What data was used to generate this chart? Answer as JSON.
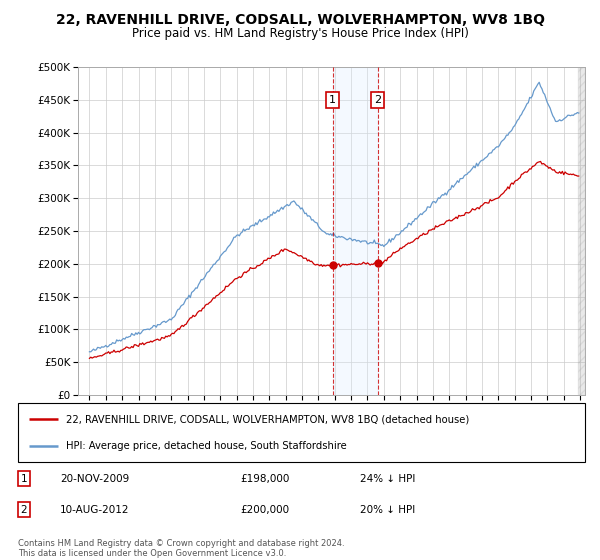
{
  "title": "22, RAVENHILL DRIVE, CODSALL, WOLVERHAMPTON, WV8 1BQ",
  "subtitle": "Price paid vs. HM Land Registry's House Price Index (HPI)",
  "legend_line1": "22, RAVENHILL DRIVE, CODSALL, WOLVERHAMPTON, WV8 1BQ (detached house)",
  "legend_line2": "HPI: Average price, detached house, South Staffordshire",
  "transaction1_date": "20-NOV-2009",
  "transaction1_price": 198000,
  "transaction1_label": "24% ↓ HPI",
  "transaction2_date": "10-AUG-2012",
  "transaction2_price": 200000,
  "transaction2_label": "20% ↓ HPI",
  "footer": "Contains HM Land Registry data © Crown copyright and database right 2024.\nThis data is licensed under the Open Government Licence v3.0.",
  "red_color": "#cc0000",
  "blue_color": "#6699cc",
  "shading_color": "#ddeeff",
  "ylim": [
    0,
    500000
  ],
  "yticks": [
    0,
    50000,
    100000,
    150000,
    200000,
    250000,
    300000,
    350000,
    400000,
    450000,
    500000
  ],
  "year_start": 1995,
  "year_end": 2025
}
